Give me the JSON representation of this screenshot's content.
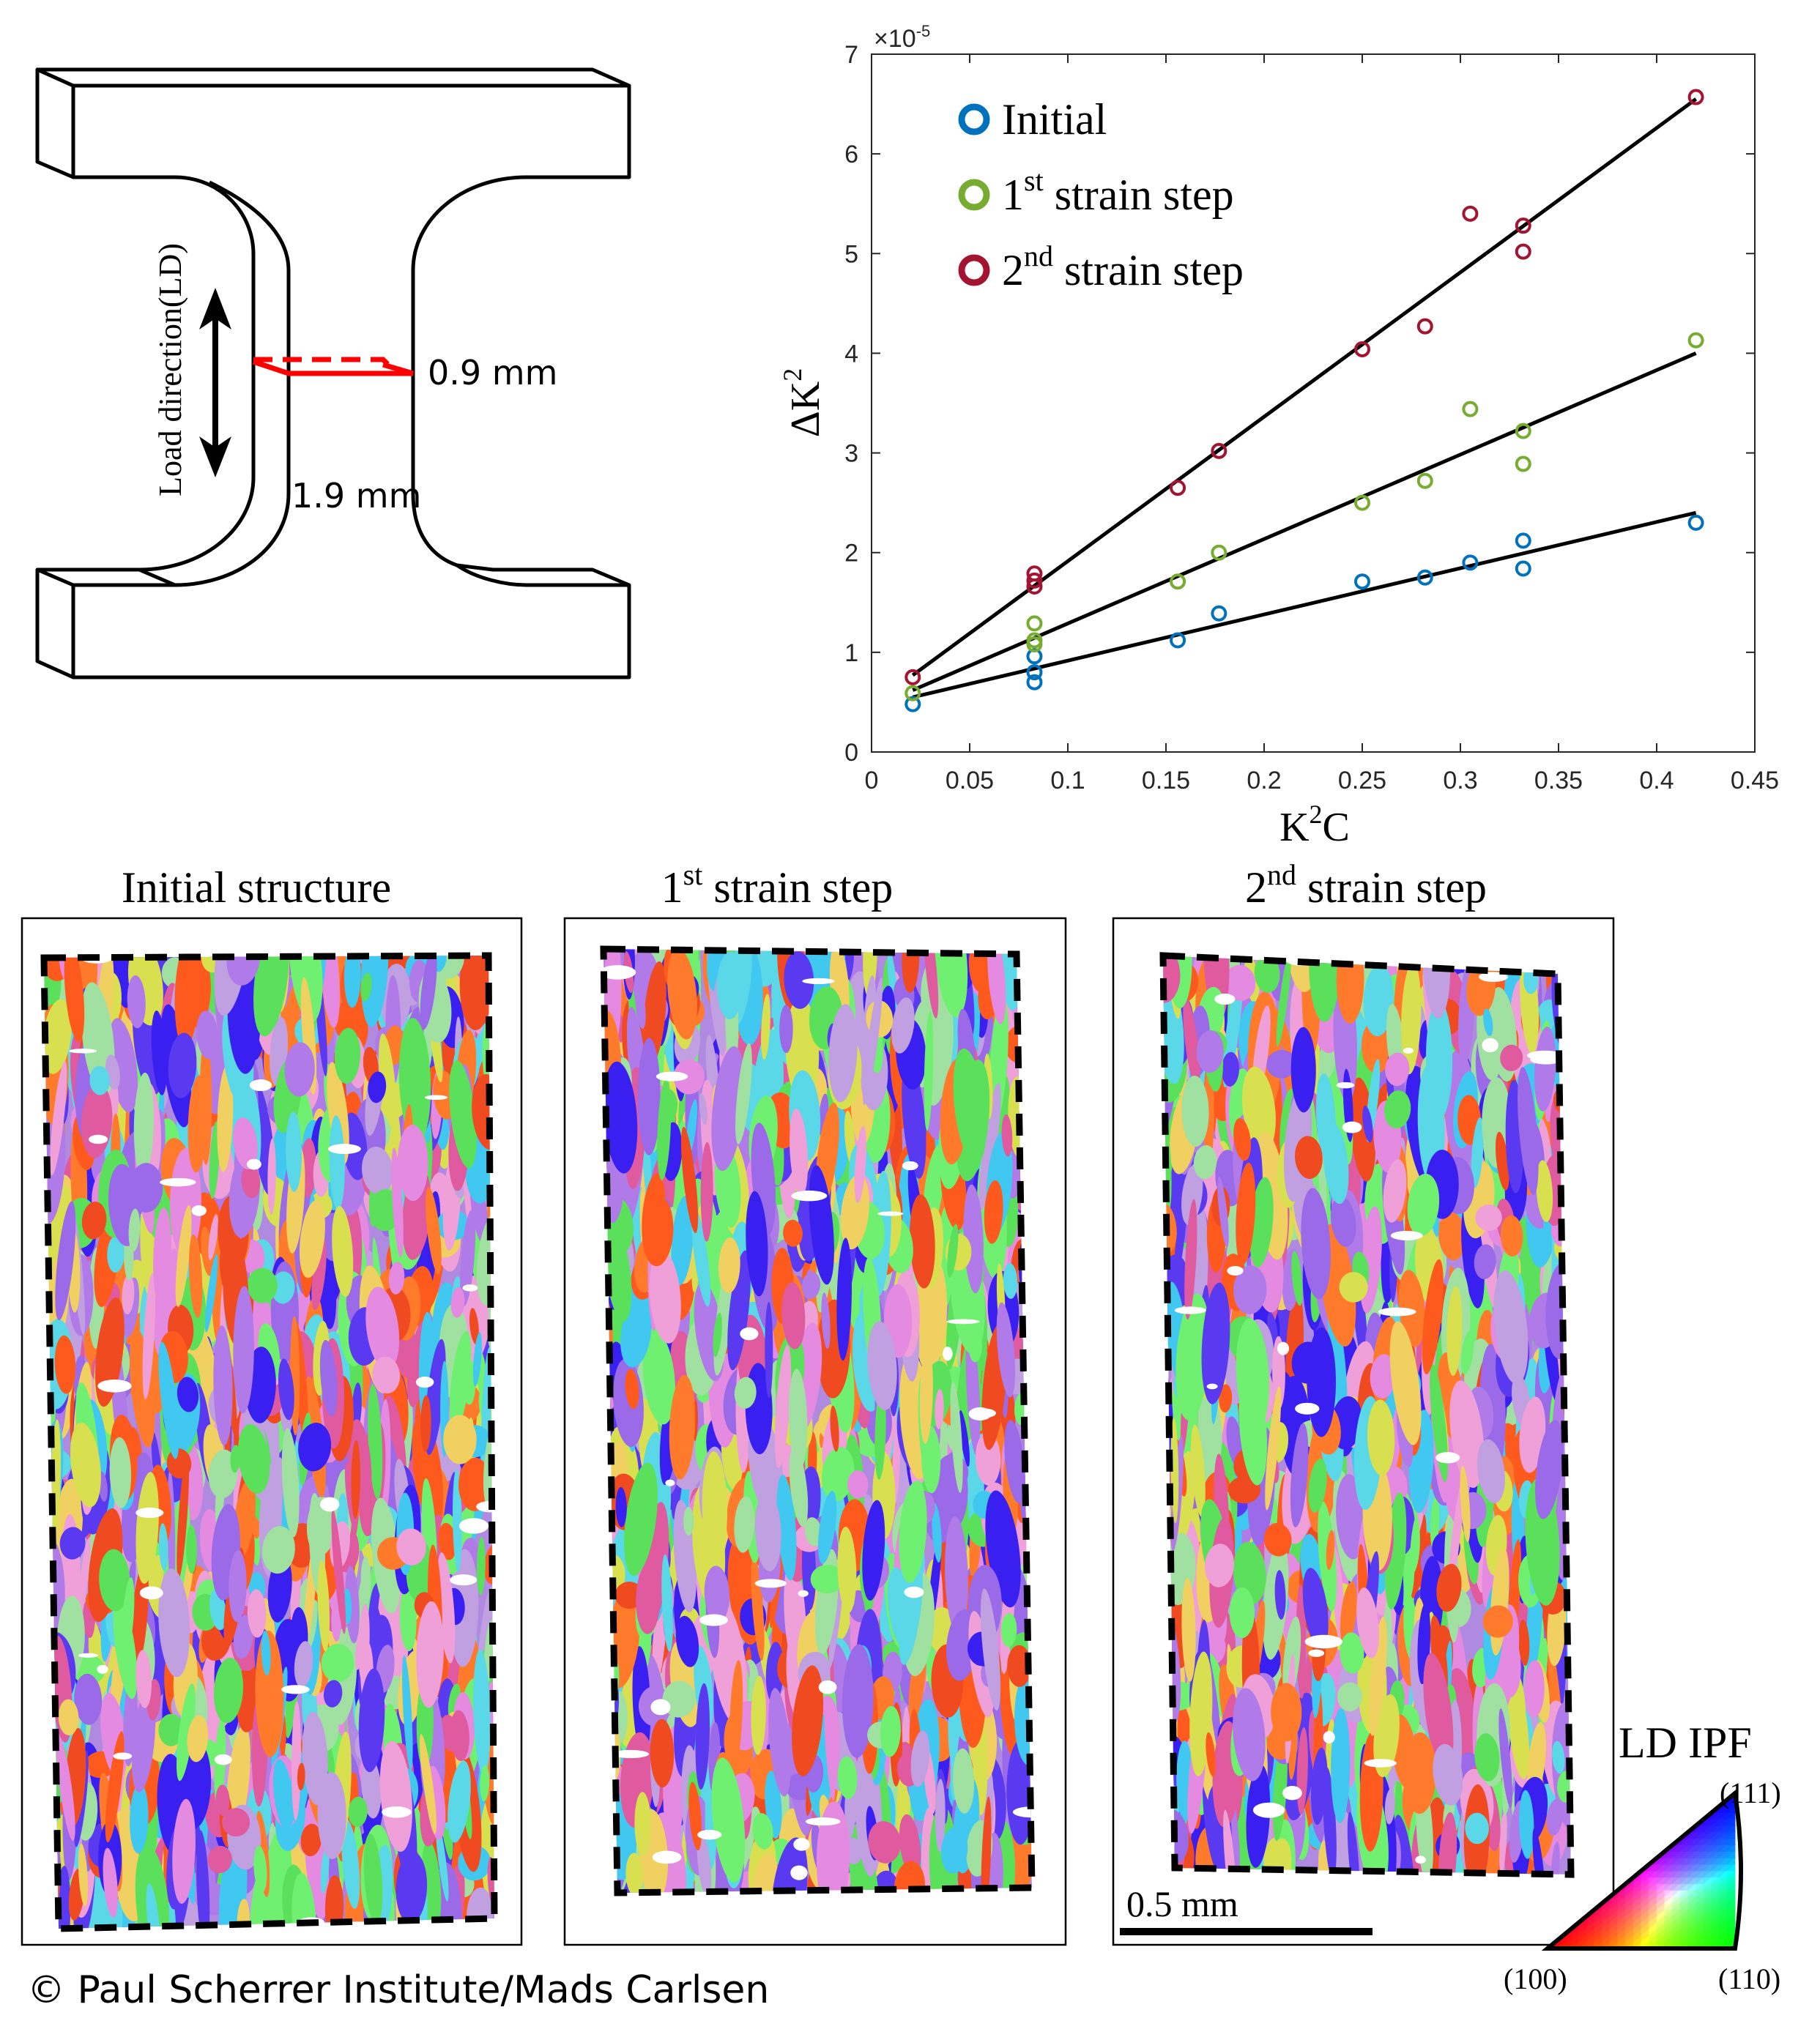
{
  "specimen": {
    "load_direction_label": "Load direction(LD)",
    "thickness_label": "0.9 mm",
    "width_label": "1.9 mm"
  },
  "chart_data": {
    "type": "scatter",
    "title": "",
    "xlabel": "K²C",
    "xlabel_base": "K",
    "xlabel_sup": "2",
    "xlabel_tail": "C",
    "ylabel": "ΔK²",
    "ylabel_base": "ΔK",
    "ylabel_sup": "2",
    "y_multiplier_label": "×10",
    "y_multiplier_exp": "-5",
    "xlim": [
      0,
      0.45
    ],
    "ylim": [
      0,
      7
    ],
    "xticks": [
      "0",
      "0.05",
      "0.1",
      "0.15",
      "0.2",
      "0.25",
      "0.3",
      "0.35",
      "0.4",
      "0.45"
    ],
    "yticks": [
      "0",
      "1",
      "2",
      "3",
      "4",
      "5",
      "6",
      "7"
    ],
    "grid": false,
    "legend_position": "top-left",
    "series": [
      {
        "name": "Initial",
        "legend": {
          "num": "",
          "sup": "",
          "rest": "Initial"
        },
        "color": "#0072bd",
        "x": [
          0.021,
          0.083,
          0.083,
          0.083,
          0.156,
          0.177,
          0.25,
          0.282,
          0.305,
          0.332,
          0.332,
          0.42
        ],
        "y": [
          0.48,
          0.7,
          0.8,
          0.96,
          1.12,
          1.39,
          1.71,
          1.75,
          1.9,
          2.12,
          1.84,
          2.3
        ],
        "fit": {
          "x": [
            0.021,
            0.42
          ],
          "y": [
            0.55,
            2.4
          ]
        }
      },
      {
        "name": "1st strain step",
        "legend": {
          "num": "1",
          "sup": "st",
          "rest": " strain step"
        },
        "color": "#77ac30",
        "x": [
          0.021,
          0.083,
          0.083,
          0.083,
          0.156,
          0.177,
          0.25,
          0.282,
          0.305,
          0.332,
          0.332,
          0.42
        ],
        "y": [
          0.59,
          1.08,
          1.12,
          1.29,
          1.71,
          2.0,
          2.5,
          2.72,
          3.44,
          3.22,
          2.89,
          4.13
        ],
        "fit": {
          "x": [
            0.021,
            0.42
          ],
          "y": [
            0.62,
            4.0
          ]
        }
      },
      {
        "name": "2nd strain step",
        "legend": {
          "num": "2",
          "sup": "nd",
          "rest": " strain step"
        },
        "color": "#a2142f",
        "x": [
          0.021,
          0.083,
          0.083,
          0.083,
          0.156,
          0.177,
          0.25,
          0.282,
          0.305,
          0.332,
          0.332,
          0.42
        ],
        "y": [
          0.75,
          1.66,
          1.72,
          1.79,
          2.65,
          3.02,
          4.04,
          4.27,
          5.4,
          5.28,
          5.02,
          6.57
        ],
        "fit": {
          "x": [
            0.021,
            0.42
          ],
          "y": [
            0.77,
            6.55
          ]
        }
      }
    ]
  },
  "maps": [
    {
      "title": {
        "num": "",
        "sup": "",
        "rest": "Initial structure"
      }
    },
    {
      "title": {
        "num": "1",
        "sup": "st",
        "rest": " strain step"
      }
    },
    {
      "title": {
        "num": "2",
        "sup": "nd",
        "rest": " strain step"
      }
    }
  ],
  "scale_bar": {
    "label": "0.5 mm"
  },
  "ipf": {
    "title": "LD IPF",
    "corner_111": "(111)",
    "corner_100": "(100)",
    "corner_110": "(110)",
    "colors": {
      "100": "#ff0000",
      "110": "#00ff00",
      "111": "#0000ff"
    }
  },
  "ipf_palette": [
    "#ff5a1e",
    "#ff7a2a",
    "#f04a20",
    "#3a20f0",
    "#5a3af0",
    "#9a6ae8",
    "#b07ae8",
    "#e48ae0",
    "#f0a0d8",
    "#5ae05a",
    "#70f070",
    "#5ad8e8",
    "#40c8f0",
    "#d8e050",
    "#f0d060",
    "#c0a0e0",
    "#a0e0a0",
    "#e05aa0"
  ],
  "copyright": "© Paul Scherrer Institute/Mads Carlsen"
}
